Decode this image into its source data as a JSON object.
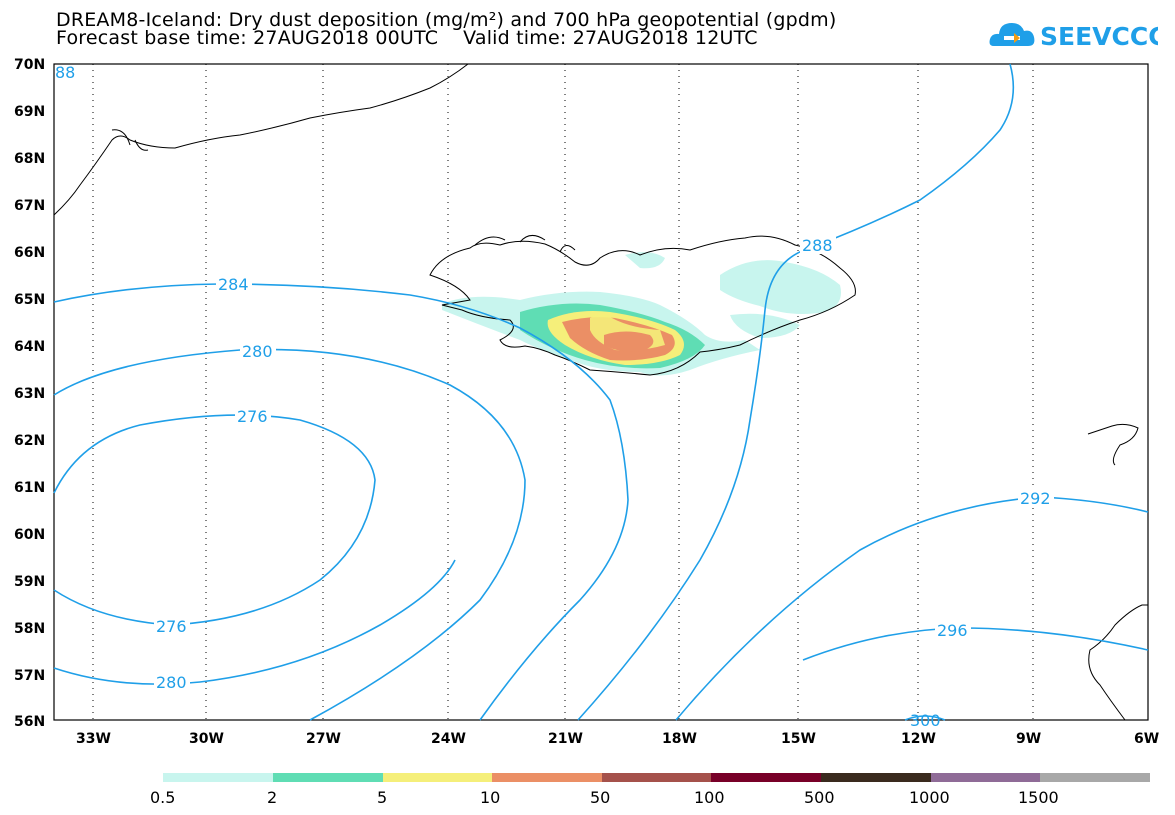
{
  "header": {
    "title_line1": "DREAM8-Iceland: Dry dust deposition (mg/m²) and 700 hPa geopotential (gpdm)",
    "title_line2": "Forecast base time: 27AUG2018 00UTC    Valid time: 27AUG2018 12UTC",
    "logo_text": "SEEVCCC"
  },
  "map": {
    "lat_labels": [
      "70N",
      "69N",
      "68N",
      "67N",
      "66N",
      "65N",
      "64N",
      "63N",
      "62N",
      "61N",
      "60N",
      "59N",
      "58N",
      "57N",
      "56N"
    ],
    "lon_labels": [
      "33W",
      "30W",
      "27W",
      "24W",
      "21W",
      "18W",
      "15W",
      "12W",
      "9W",
      "6W"
    ],
    "contour_labels": [
      "284",
      "280",
      "276",
      "276",
      "280",
      "288",
      "292",
      "296",
      "300",
      "88"
    ]
  },
  "legend": {
    "labels": [
      "0.5",
      "2",
      "5",
      "10",
      "50",
      "100",
      "500",
      "1000",
      "1500"
    ],
    "colors": [
      "#c8f5ee",
      "#5fddb4",
      "#f5ef7a",
      "#eb8f65",
      "#a5514b",
      "#780028",
      "#3a2a1e",
      "#8f6b97",
      "#a8a8a8"
    ]
  }
}
